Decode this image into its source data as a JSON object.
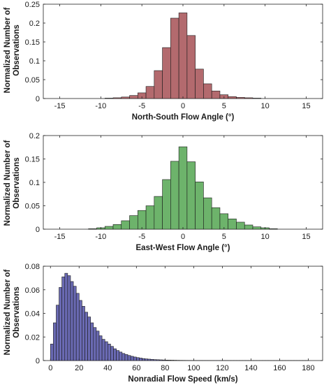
{
  "chart_data": [
    {
      "type": "bar",
      "xlabel": "North-South Flow Angle (°)",
      "ylabel": "Normalized Number of Observations",
      "xlim": [
        -17,
        17
      ],
      "ylim": [
        0,
        0.25
      ],
      "xticks": [
        -15,
        -10,
        -5,
        0,
        5,
        10,
        15
      ],
      "yticks": [
        0,
        0.05,
        0.1,
        0.15,
        0.2,
        0.25
      ],
      "ytick_labels": [
        "0",
        "0.05",
        "0.1",
        "0.15",
        "0.2",
        "0.25"
      ],
      "bin_width": 1,
      "color": "#b36a6e",
      "bin_centers": [
        -9,
        -8,
        -7,
        -6,
        -5,
        -4,
        -3,
        -2,
        -1,
        0,
        1,
        2,
        3,
        4,
        5,
        6,
        7,
        8,
        9
      ],
      "values": [
        0.001,
        0.002,
        0.004,
        0.008,
        0.015,
        0.032,
        0.074,
        0.135,
        0.213,
        0.227,
        0.167,
        0.078,
        0.039,
        0.02,
        0.01,
        0.005,
        0.003,
        0.002,
        0.001
      ]
    },
    {
      "type": "bar",
      "xlabel": "East-West Flow Angle (°)",
      "ylabel": "Normalized Number of Observations",
      "xlim": [
        -17,
        17
      ],
      "ylim": [
        0,
        0.2
      ],
      "xticks": [
        -15,
        -10,
        -5,
        0,
        5,
        10,
        15
      ],
      "yticks": [
        0,
        0.05,
        0.1,
        0.15,
        0.2
      ],
      "ytick_labels": [
        "0",
        "0.05",
        "0.1",
        "0.15",
        "0.2"
      ],
      "bin_width": 1,
      "color": "#6db36b",
      "bin_centers": [
        -11,
        -10,
        -9,
        -8,
        -7,
        -6,
        -5,
        -4,
        -3,
        -2,
        -1,
        0,
        1,
        2,
        3,
        4,
        5,
        6,
        7,
        8,
        9,
        10,
        11
      ],
      "values": [
        0.001,
        0.003,
        0.006,
        0.01,
        0.018,
        0.029,
        0.04,
        0.05,
        0.07,
        0.106,
        0.145,
        0.176,
        0.144,
        0.101,
        0.067,
        0.046,
        0.033,
        0.022,
        0.015,
        0.009,
        0.005,
        0.003,
        0.001
      ]
    },
    {
      "type": "bar",
      "xlabel": "Nonradial Flow Speed (km/s)",
      "ylabel": "Normalized Number of Observations",
      "xlim": [
        -5,
        190
      ],
      "ylim": [
        0,
        0.08
      ],
      "xticks": [
        0,
        20,
        40,
        60,
        80,
        100,
        120,
        140,
        160,
        180
      ],
      "yticks": [
        0,
        0.02,
        0.04,
        0.06,
        0.08
      ],
      "ytick_labels": [
        "0",
        "0.02",
        "0.04",
        "0.06",
        "0.08"
      ],
      "bin_width": 2,
      "color": "#6a6ab3",
      "bin_centers": [
        1,
        3,
        5,
        7,
        9,
        11,
        13,
        15,
        17,
        19,
        21,
        23,
        25,
        27,
        29,
        31,
        33,
        35,
        37,
        39,
        41,
        43,
        45,
        47,
        49,
        51,
        53,
        55,
        57,
        59,
        61,
        63,
        65,
        67,
        69,
        71,
        73,
        75,
        77,
        79,
        81,
        83,
        85,
        87,
        89,
        91,
        93,
        95,
        97,
        99,
        101,
        103,
        105,
        107,
        109,
        111,
        113,
        115,
        117,
        119,
        121,
        123,
        125,
        127,
        129,
        131,
        133,
        135,
        137,
        139,
        141,
        143,
        145,
        147,
        149,
        151,
        153,
        155,
        157,
        159,
        161,
        163,
        165,
        167,
        169,
        171,
        173,
        175,
        177,
        179
      ],
      "values": [
        0.014,
        0.032,
        0.047,
        0.062,
        0.071,
        0.074,
        0.072,
        0.067,
        0.063,
        0.057,
        0.051,
        0.046,
        0.041,
        0.037,
        0.032,
        0.028,
        0.025,
        0.021,
        0.018,
        0.016,
        0.014,
        0.012,
        0.01,
        0.0085,
        0.0072,
        0.006,
        0.0051,
        0.0043,
        0.0036,
        0.003,
        0.0025,
        0.0021,
        0.0017,
        0.0014,
        0.0012,
        0.001,
        0.0008,
        0.0007,
        0.0006,
        0.0005,
        0.0004,
        0.00035,
        0.0003,
        0.00025,
        0.0002,
        0.00017,
        0.00015,
        0.00013,
        0.00011,
        0.0001,
        9e-05,
        8e-05,
        7e-05,
        6e-05,
        5e-05,
        4e-05,
        4e-05,
        3e-05,
        3e-05,
        2e-05,
        2e-05,
        2e-05,
        1e-05,
        1e-05,
        1e-05,
        1e-05,
        1e-05,
        1e-05,
        1e-05,
        1e-05,
        1e-05,
        1e-05,
        1e-05,
        1e-05,
        1e-05,
        1e-05,
        1e-05,
        1e-05,
        1e-05,
        1e-05,
        1e-05,
        1e-05,
        1e-05,
        1e-05,
        1e-05,
        1e-05,
        1e-05,
        1e-05,
        1e-05,
        1e-05
      ]
    }
  ]
}
